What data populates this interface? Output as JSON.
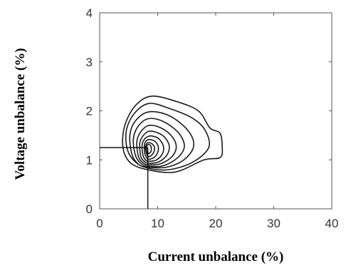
{
  "chart_data": {
    "type": "contour",
    "title": "",
    "xlabel": "Current unbalance (%)",
    "ylabel": "Voltage unbalance (%)",
    "xlim": [
      0,
      40
    ],
    "ylim": [
      0,
      4
    ],
    "xticks": [
      0,
      10,
      20,
      30,
      40
    ],
    "yticks": [
      0,
      1,
      2,
      3,
      4
    ],
    "grid": false,
    "legend": "none",
    "line_color": "#1a1a1a",
    "peak": {
      "x": 8.3,
      "y": 1.25
    },
    "contour_levels": [
      {
        "level": 1,
        "points": [
          [
            8.2,
            0.8
          ],
          [
            13,
            0.75
          ],
          [
            18,
            1.0
          ],
          [
            20.8,
            1.05
          ],
          [
            21.1,
            1.3
          ],
          [
            20.7,
            1.55
          ],
          [
            19,
            1.65
          ],
          [
            17,
            2.0
          ],
          [
            13,
            2.2
          ],
          [
            9,
            2.3
          ],
          [
            6.5,
            2.15
          ],
          [
            4.8,
            1.85
          ],
          [
            4,
            1.5
          ],
          [
            4.2,
            1.15
          ],
          [
            5.5,
            0.92
          ]
        ]
      },
      {
        "level": 2,
        "points": [
          [
            8.3,
            0.83
          ],
          [
            12,
            0.8
          ],
          [
            16,
            0.95
          ],
          [
            18.8,
            1.25
          ],
          [
            18.2,
            1.6
          ],
          [
            16,
            1.85
          ],
          [
            12,
            2.05
          ],
          [
            8.5,
            2.15
          ],
          [
            6,
            1.95
          ],
          [
            4.6,
            1.6
          ],
          [
            4.8,
            1.2
          ],
          [
            6.2,
            0.95
          ]
        ]
      },
      {
        "level": 3,
        "points": [
          [
            8.4,
            0.85
          ],
          [
            11.5,
            0.85
          ],
          [
            14.5,
            1.0
          ],
          [
            16.2,
            1.28
          ],
          [
            15.2,
            1.6
          ],
          [
            12,
            1.9
          ],
          [
            8.5,
            1.98
          ],
          [
            6.2,
            1.8
          ],
          [
            5.2,
            1.5
          ],
          [
            5.6,
            1.1
          ],
          [
            6.8,
            0.9
          ]
        ]
      },
      {
        "level": 4,
        "points": [
          [
            8.4,
            0.87
          ],
          [
            11,
            0.88
          ],
          [
            13.5,
            1.05
          ],
          [
            14.6,
            1.28
          ],
          [
            13.6,
            1.55
          ],
          [
            11,
            1.78
          ],
          [
            8.4,
            1.84
          ],
          [
            6.6,
            1.68
          ],
          [
            5.8,
            1.42
          ],
          [
            6.2,
            1.08
          ],
          [
            7.2,
            0.92
          ]
        ]
      },
      {
        "level": 5,
        "points": [
          [
            8.4,
            0.9
          ],
          [
            10.5,
            0.92
          ],
          [
            12.5,
            1.07
          ],
          [
            13.2,
            1.28
          ],
          [
            12.3,
            1.5
          ],
          [
            10.4,
            1.66
          ],
          [
            8.4,
            1.7
          ],
          [
            7,
            1.56
          ],
          [
            6.4,
            1.36
          ],
          [
            6.7,
            1.06
          ],
          [
            7.5,
            0.94
          ]
        ]
      },
      {
        "level": 6,
        "points": [
          [
            8.4,
            0.93
          ],
          [
            10.2,
            0.96
          ],
          [
            11.6,
            1.1
          ],
          [
            12,
            1.28
          ],
          [
            11.2,
            1.46
          ],
          [
            9.8,
            1.56
          ],
          [
            8.4,
            1.58
          ],
          [
            7.3,
            1.46
          ],
          [
            6.9,
            1.32
          ],
          [
            7.1,
            1.06
          ],
          [
            7.7,
            0.97
          ]
        ]
      },
      {
        "level": 7,
        "points": [
          [
            8.4,
            0.97
          ],
          [
            9.8,
            1.0
          ],
          [
            10.8,
            1.12
          ],
          [
            11,
            1.27
          ],
          [
            10.3,
            1.42
          ],
          [
            9.3,
            1.48
          ],
          [
            8.4,
            1.48
          ],
          [
            7.6,
            1.4
          ],
          [
            7.3,
            1.28
          ],
          [
            7.5,
            1.08
          ],
          [
            7.9,
            1.0
          ]
        ]
      },
      {
        "level": 8,
        "points": [
          [
            8.4,
            1.01
          ],
          [
            9.4,
            1.05
          ],
          [
            10,
            1.15
          ],
          [
            10.1,
            1.27
          ],
          [
            9.6,
            1.37
          ],
          [
            8.9,
            1.41
          ],
          [
            8.3,
            1.41
          ],
          [
            7.8,
            1.35
          ],
          [
            7.7,
            1.25
          ],
          [
            7.8,
            1.12
          ],
          [
            8.1,
            1.04
          ]
        ]
      },
      {
        "level": 9,
        "points": [
          [
            8.4,
            1.06
          ],
          [
            9,
            1.1
          ],
          [
            9.4,
            1.18
          ],
          [
            9.4,
            1.27
          ],
          [
            9,
            1.33
          ],
          [
            8.5,
            1.35
          ],
          [
            8.1,
            1.33
          ],
          [
            7.9,
            1.26
          ],
          [
            8,
            1.16
          ],
          [
            8.2,
            1.09
          ]
        ]
      },
      {
        "level": 10,
        "points": [
          [
            8.4,
            1.13
          ],
          [
            8.8,
            1.16
          ],
          [
            8.9,
            1.24
          ],
          [
            8.7,
            1.3
          ],
          [
            8.3,
            1.31
          ],
          [
            8.1,
            1.26
          ],
          [
            8.1,
            1.18
          ],
          [
            8.2,
            1.14
          ]
        ]
      }
    ]
  }
}
